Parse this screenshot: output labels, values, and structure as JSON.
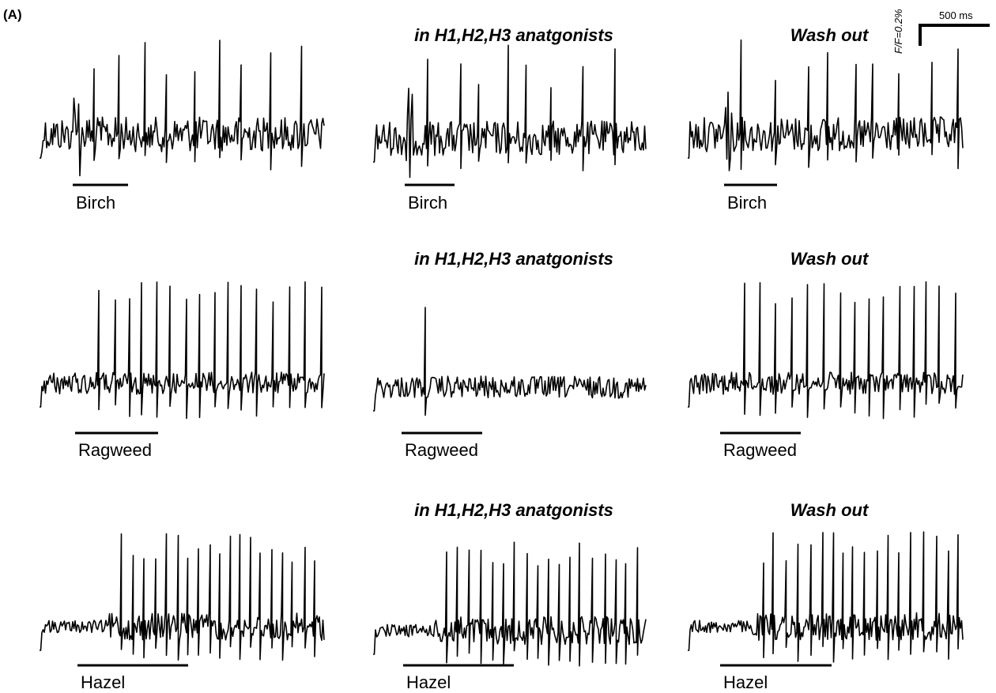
{
  "panel_label": "(A)",
  "scale_bar": {
    "vertical_label": "F/F=0.2%",
    "horizontal_label": "500 ms"
  },
  "rows": [
    {
      "panels": [
        {
          "stimulus": "Birch"
        },
        {
          "title": "in H1,H2,H3 anatgonists",
          "stimulus": "Birch"
        },
        {
          "title": "Wash out",
          "stimulus": "Birch"
        }
      ]
    },
    {
      "panels": [
        {
          "stimulus": "Ragweed"
        },
        {
          "title": "in H1,H2,H3 anatgonists",
          "stimulus": "Ragweed"
        },
        {
          "title": "Wash out",
          "stimulus": "Ragweed"
        }
      ]
    },
    {
      "panels": [
        {
          "stimulus": "Hazel"
        },
        {
          "title": "in H1,H2,H3 anatgonists",
          "stimulus": "Hazel"
        },
        {
          "title": "Wash out",
          "stimulus": "Hazel"
        }
      ]
    }
  ]
}
